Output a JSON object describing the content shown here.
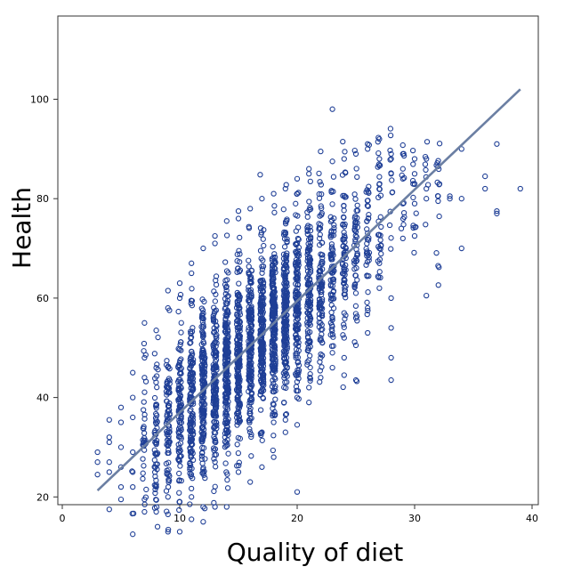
{
  "chart_data": {
    "type": "scatter",
    "xlabel": "Quality of diet",
    "ylabel": "Health",
    "xlim": [
      -0.5,
      40.5
    ],
    "ylim": [
      5,
      103
    ],
    "x_ticks": [
      0,
      10,
      20,
      30,
      40
    ],
    "y_ticks": [
      20,
      40,
      60,
      80,
      100
    ],
    "grid": false,
    "marker_color": "#1f3f96",
    "fit_line_color": "#6b7fa3",
    "fit_line": {
      "x": [
        3,
        39
      ],
      "y": [
        21.3,
        102
      ]
    },
    "series": [
      {
        "values": [
          [
            3,
            27
          ],
          [
            3,
            29
          ],
          [
            3,
            24.5
          ],
          [
            4,
            35.5
          ],
          [
            4,
            31
          ],
          [
            4,
            27
          ],
          [
            4,
            25
          ],
          [
            4,
            17.5
          ],
          [
            4,
            32
          ],
          [
            5,
            30
          ],
          [
            5,
            35
          ],
          [
            5,
            22
          ],
          [
            5,
            19.5
          ],
          [
            5,
            38
          ],
          [
            5,
            26
          ],
          [
            6,
            12.5
          ],
          [
            6,
            45
          ],
          [
            6,
            29
          ],
          [
            6,
            25
          ],
          [
            6,
            22
          ],
          [
            6,
            36
          ],
          [
            6,
            40
          ],
          [
            7,
            19.5
          ],
          [
            7,
            48
          ],
          [
            7,
            55
          ],
          [
            7,
            17
          ],
          [
            7,
            44
          ],
          [
            8,
            17
          ],
          [
            8,
            22
          ],
          [
            8,
            53.5
          ],
          [
            8,
            46
          ],
          [
            9,
            13
          ],
          [
            9,
            16.5
          ],
          [
            9,
            61.5
          ],
          [
            9,
            20
          ],
          [
            9,
            58
          ],
          [
            10,
            13
          ],
          [
            10,
            19
          ],
          [
            10,
            63
          ],
          [
            10,
            60
          ],
          [
            11,
            15.5
          ],
          [
            11,
            67
          ],
          [
            11,
            65
          ],
          [
            11,
            20
          ],
          [
            12,
            15
          ],
          [
            12,
            70
          ],
          [
            12,
            18
          ],
          [
            13,
            72.5
          ],
          [
            13,
            71
          ],
          [
            13,
            18
          ],
          [
            14,
            75.5
          ],
          [
            14,
            18
          ],
          [
            15,
            77.5
          ],
          [
            15,
            76
          ],
          [
            15,
            25
          ],
          [
            16,
            78
          ],
          [
            16,
            23
          ],
          [
            17,
            80
          ],
          [
            17,
            26
          ],
          [
            17,
            33
          ],
          [
            18,
            81
          ],
          [
            18,
            35
          ],
          [
            18,
            28
          ],
          [
            19,
            82
          ],
          [
            19,
            33
          ],
          [
            19,
            35.5
          ],
          [
            20,
            81
          ],
          [
            20,
            84
          ],
          [
            20,
            21
          ],
          [
            20,
            34.5
          ],
          [
            20,
            40
          ],
          [
            21,
            86
          ],
          [
            21,
            85
          ],
          [
            21,
            42
          ],
          [
            21,
            47.5
          ],
          [
            21,
            39
          ],
          [
            22,
            89.5
          ],
          [
            22,
            44
          ],
          [
            22,
            48
          ],
          [
            22,
            52
          ],
          [
            22,
            55
          ],
          [
            23,
            98
          ],
          [
            23,
            87.5
          ],
          [
            23,
            46
          ],
          [
            23,
            49
          ],
          [
            23,
            56
          ],
          [
            24,
            88
          ],
          [
            24,
            44.5
          ],
          [
            24,
            48
          ],
          [
            24,
            52
          ],
          [
            24,
            57
          ],
          [
            25,
            89
          ],
          [
            25,
            43.5
          ],
          [
            25,
            50.5
          ],
          [
            25,
            56
          ],
          [
            25,
            61
          ],
          [
            26,
            90
          ],
          [
            26,
            91
          ],
          [
            26,
            53
          ],
          [
            26,
            58
          ],
          [
            27,
            92
          ],
          [
            27,
            88
          ],
          [
            27,
            62
          ],
          [
            27,
            67
          ],
          [
            27,
            70
          ],
          [
            28,
            89
          ],
          [
            28,
            88
          ],
          [
            28,
            43.5
          ],
          [
            28,
            48
          ],
          [
            28,
            54
          ],
          [
            28,
            60
          ],
          [
            28,
            85
          ],
          [
            29,
            89
          ],
          [
            29,
            86
          ],
          [
            29,
            72
          ],
          [
            29,
            79
          ],
          [
            29,
            84
          ],
          [
            30,
            88
          ],
          [
            30,
            85
          ],
          [
            30,
            72.5
          ],
          [
            30,
            83
          ],
          [
            30,
            79
          ],
          [
            31,
            88
          ],
          [
            31,
            60.5
          ],
          [
            31,
            82
          ],
          [
            31,
            80
          ],
          [
            32,
            86.5
          ],
          [
            32,
            66.5
          ],
          [
            32,
            80.5
          ],
          [
            32,
            79.5
          ],
          [
            33,
            80
          ],
          [
            33,
            80.5
          ],
          [
            34,
            90
          ],
          [
            34,
            70
          ],
          [
            34,
            80
          ],
          [
            36,
            84.5
          ],
          [
            36,
            82
          ],
          [
            37,
            91
          ],
          [
            37,
            77
          ],
          [
            37,
            77.5
          ],
          [
            39,
            82
          ]
        ]
      }
    ]
  }
}
